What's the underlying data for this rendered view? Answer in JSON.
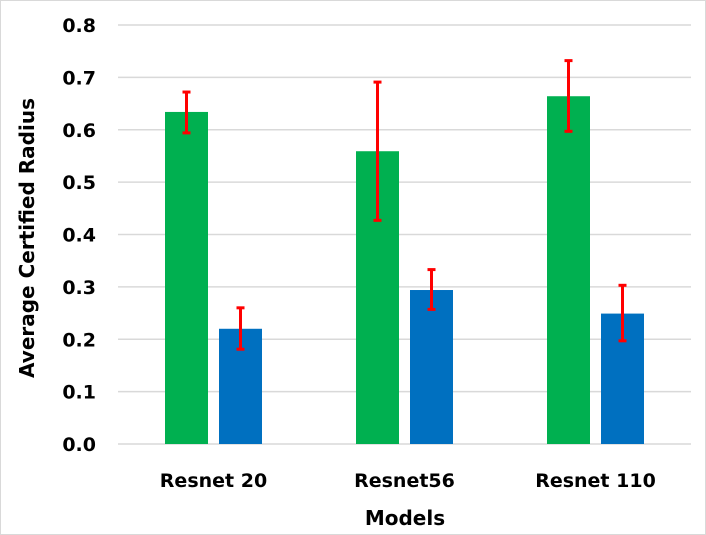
{
  "chart_data": {
    "type": "bar",
    "title": "",
    "xlabel": "Models",
    "ylabel": "Average Certified Radius",
    "ylim": [
      0,
      0.8
    ],
    "yticks": [
      "0.0",
      "0.1",
      "0.2",
      "0.3",
      "0.4",
      "0.5",
      "0.6",
      "0.7",
      "0.8"
    ],
    "grid": true,
    "legend": "none",
    "categories": [
      "Resnet 20",
      "Resnet56",
      "Resnet 110"
    ],
    "series": [
      {
        "color": "#00b050",
        "values": [
          0.634,
          0.559,
          0.664
        ],
        "error_low": [
          0.594,
          0.427,
          0.597
        ],
        "error_high": [
          0.672,
          0.691,
          0.732
        ]
      },
      {
        "color": "#0070c0",
        "values": [
          0.22,
          0.294,
          0.249
        ],
        "error_low": [
          0.181,
          0.257,
          0.197
        ],
        "error_high": [
          0.26,
          0.333,
          0.303
        ]
      }
    ],
    "error_bar_color": "#ff0000"
  }
}
